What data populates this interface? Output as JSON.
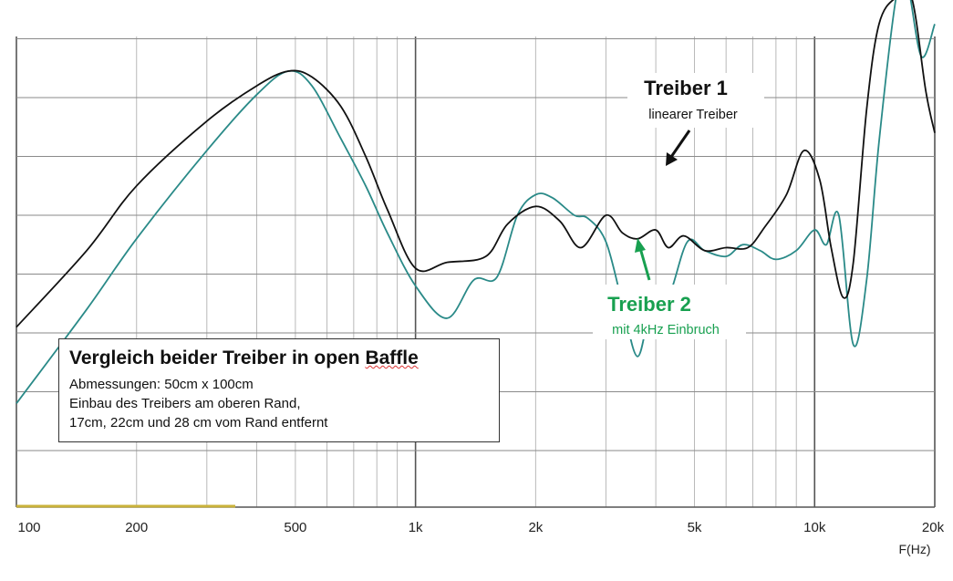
{
  "chart_data": {
    "type": "line",
    "xscale": "log",
    "xlim": [
      100,
      20000
    ],
    "x_tick_labels": [
      "100",
      "200",
      "500",
      "1k",
      "2k",
      "5k",
      "10k",
      "20k"
    ],
    "x_tick_values": [
      100,
      200,
      500,
      1000,
      2000,
      5000,
      10000,
      20000
    ],
    "x_unit_label": "F(Hz)",
    "grid": true,
    "series": [
      {
        "name": "Treiber 1",
        "color": "#111111",
        "x": [
          100,
          150,
          200,
          300,
          400,
          480,
          550,
          650,
          750,
          850,
          1000,
          1200,
          1500,
          1700,
          2000,
          2300,
          2600,
          3000,
          3300,
          3600,
          4000,
          4300,
          4700,
          5300,
          6000,
          6800,
          7500,
          8500,
          9400,
          10300,
          11000,
          11800,
          12500,
          13500,
          14500,
          16000,
          17500,
          19000,
          20000
        ],
        "y": [
          -1.9,
          -0.6,
          0.5,
          1.6,
          2.2,
          2.45,
          2.35,
          1.85,
          1.0,
          0.1,
          -0.9,
          -0.8,
          -0.7,
          -0.15,
          0.15,
          -0.1,
          -0.55,
          0.0,
          -0.3,
          -0.4,
          -0.25,
          -0.55,
          -0.35,
          -0.6,
          -0.55,
          -0.55,
          -0.2,
          0.35,
          1.1,
          0.6,
          -0.55,
          -1.4,
          -0.8,
          1.8,
          3.25,
          3.7,
          3.7,
          2.1,
          1.4
        ]
      },
      {
        "name": "Treiber 2",
        "color": "#2a8a88",
        "x": [
          100,
          150,
          200,
          300,
          400,
          480,
          550,
          650,
          750,
          850,
          1000,
          1200,
          1400,
          1600,
          1800,
          2000,
          2200,
          2500,
          2700,
          3000,
          3300,
          3600,
          3900,
          4300,
          4800,
          5300,
          6000,
          6600,
          7300,
          8000,
          9000,
          10000,
          10700,
          11500,
          12500,
          13500,
          14500,
          16000,
          17000,
          18500,
          20000
        ],
        "y": [
          -3.2,
          -1.6,
          -0.4,
          1.1,
          2.05,
          2.45,
          2.2,
          1.3,
          0.5,
          -0.3,
          -1.2,
          -1.75,
          -1.1,
          -1.05,
          0.0,
          0.35,
          0.3,
          0.0,
          -0.05,
          -0.45,
          -1.5,
          -2.4,
          -1.55,
          -1.4,
          -0.45,
          -0.6,
          -0.7,
          -0.5,
          -0.6,
          -0.75,
          -0.6,
          -0.25,
          -0.5,
          0.0,
          -2.2,
          -1.1,
          1.25,
          3.7,
          4.0,
          2.7,
          3.25
        ]
      }
    ],
    "annotations": [
      {
        "title": "Treiber 1",
        "subtitle": "linearer Treiber",
        "color": "#111111"
      },
      {
        "title": "Treiber 2",
        "subtitle": "mit 4kHz Einbruch",
        "color": "#18a050"
      }
    ]
  },
  "infobox": {
    "title_part1": "Vergleich beider Treiber in open ",
    "title_part2": "Baffle",
    "line1": "Abmessungen:  50cm x 100cm",
    "line2": "Einbau des Treibers am oberen Rand,",
    "line3": "17cm, 22cm und 28 cm vom Rand entfernt"
  }
}
